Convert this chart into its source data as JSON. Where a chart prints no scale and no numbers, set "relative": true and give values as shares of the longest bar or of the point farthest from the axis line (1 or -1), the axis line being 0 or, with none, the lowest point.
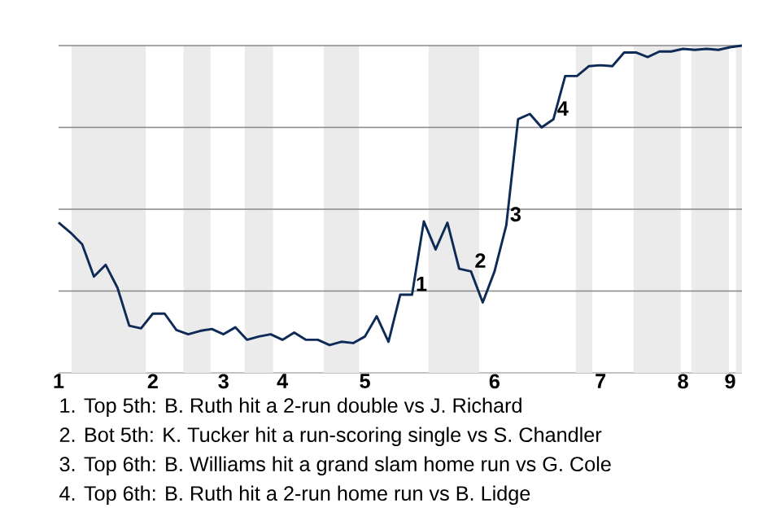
{
  "chart_data": {
    "type": "line",
    "relative": true,
    "categories": [
      "1",
      null,
      null,
      null,
      null,
      null,
      null,
      null,
      "2",
      null,
      null,
      null,
      null,
      null,
      "3",
      null,
      null,
      null,
      null,
      "4",
      null,
      null,
      null,
      null,
      null,
      null,
      "5",
      null,
      null,
      null,
      null,
      null,
      null,
      null,
      null,
      null,
      null,
      "6",
      null,
      null,
      null,
      null,
      null,
      null,
      null,
      null,
      "7",
      null,
      null,
      null,
      null,
      null,
      null,
      "8",
      null,
      null,
      null,
      "9",
      null
    ],
    "series": [
      {
        "color": "#0d2b56",
        "values": [
          0.459,
          0.429,
          0.393,
          0.294,
          0.33,
          0.26,
          0.144,
          0.136,
          0.181,
          0.181,
          0.131,
          0.118,
          0.128,
          0.134,
          0.118,
          0.139,
          0.101,
          0.111,
          0.118,
          0.101,
          0.123,
          0.101,
          0.101,
          0.085,
          0.095,
          0.091,
          0.111,
          0.173,
          0.095,
          0.239,
          0.239,
          0.463,
          0.377,
          0.459,
          0.318,
          0.31,
          0.215,
          0.31,
          0.451,
          0.775,
          0.791,
          0.75,
          0.775,
          0.907,
          0.907,
          0.937,
          0.94,
          0.937,
          0.979,
          0.979,
          0.965,
          0.982,
          0.982,
          0.99,
          0.987,
          0.99,
          0.987,
          0.995,
          1.0
        ]
      }
    ],
    "marker": "none",
    "line_style": "solid",
    "ref_lines": [
      {
        "axis": "y",
        "value": 0.25,
        "color": "#888888"
      },
      {
        "axis": "y",
        "value": 0.5,
        "color": "#888888"
      },
      {
        "axis": "y",
        "value": 0.75,
        "color": "#888888"
      },
      {
        "axis": "y",
        "value": 1.0,
        "color": "#888888"
      }
    ],
    "annotations": [
      "1",
      "2",
      "3",
      "4",
      "1. Top 5th: B. Ruth hit a 2-run double vs J. Richard",
      "2. Bot 5th: K. Tucker hit a run-scoring single vs S. Chandler",
      "3. Top 6th: B. Williams hit a grand slam home run vs G. Cole",
      "4. Top 6th: B. Ruth hit a 2-run home run vs B. Lidge"
    ]
  }
}
